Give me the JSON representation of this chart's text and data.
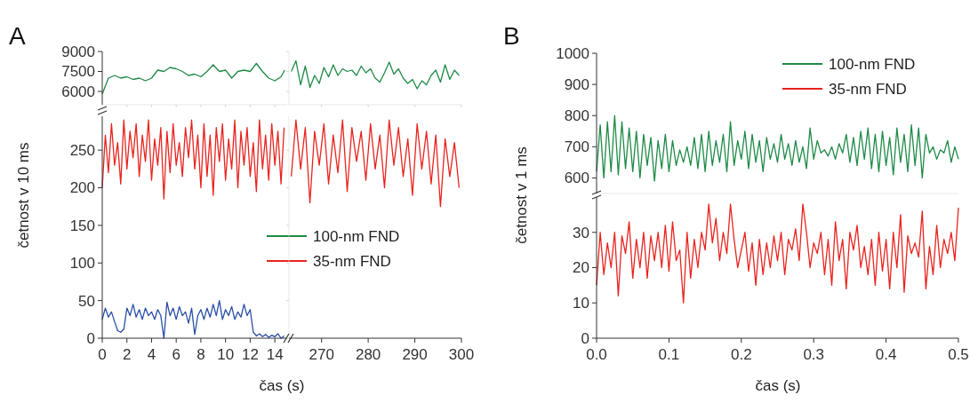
{
  "chart_data": [
    {
      "type": "line",
      "title": "A",
      "xlim": [
        0,
        15
      ],
      "xticks": [
        0,
        2,
        4,
        6,
        8,
        10,
        12,
        14
      ],
      "ylim": [
        5000,
        9000
      ],
      "yticks": [
        6000,
        7500,
        9000
      ],
      "tick_labels": "y",
      "x": [
        0,
        0.5,
        1,
        1.5,
        2,
        2.5,
        3,
        3.5,
        4,
        4.5,
        5,
        5.5,
        6,
        6.5,
        7,
        7.5,
        8,
        8.5,
        9,
        9.5,
        10,
        10.5,
        11,
        11.5,
        12,
        12.5,
        13,
        13.5,
        14,
        14.5,
        14.8
      ],
      "series": [
        {
          "name": "100-nm FND",
          "color": "#1e8a46",
          "values": [
            5800,
            7000,
            7200,
            7000,
            7100,
            6900,
            7000,
            6800,
            7000,
            7600,
            7500,
            7800,
            7700,
            7500,
            7200,
            7300,
            7100,
            7500,
            8000,
            7500,
            7600,
            7000,
            7500,
            7600,
            7500,
            8100,
            7500,
            7000,
            6800,
            7100,
            7600
          ]
        }
      ]
    },
    {
      "type": "line",
      "xlim": [
        263,
        300
      ],
      "xticks": [
        270,
        280,
        290,
        300
      ],
      "ylim": [
        5000,
        9000
      ],
      "yticks": [
        6000,
        7500,
        9000
      ],
      "tick_labels": false,
      "x": [
        263.5,
        264.5,
        265.5,
        266.5,
        267.5,
        268.5,
        269.5,
        270.5,
        271.5,
        272.5,
        273.5,
        274.5,
        275.5,
        276.5,
        277.5,
        278.5,
        279.5,
        280.5,
        281.5,
        282.5,
        283.5,
        284.5,
        285.5,
        286.5,
        287.5,
        288.5,
        289.5,
        290.5,
        291.5,
        292.5,
        293.5,
        294.5,
        295.5,
        296.5,
        297.5,
        298.5,
        299.5
      ],
      "series": [
        {
          "color": "#1e8a46",
          "values": [
            7500,
            8300,
            6500,
            7900,
            6300,
            7200,
            6600,
            7800,
            7100,
            8000,
            7200,
            7700,
            7500,
            7600,
            7200,
            7900,
            7400,
            7700,
            7000,
            6700,
            7400,
            8200,
            7300,
            7700,
            7000,
            6600,
            6900,
            6200,
            6800,
            6500,
            7200,
            7600,
            6700,
            8000,
            6900,
            7600,
            7200
          ]
        }
      ]
    },
    {
      "type": "line",
      "ylabel": "četnost v 10 ms",
      "xlabel": "čas (s)",
      "xlim": [
        0,
        15
      ],
      "xticks": [
        0,
        2,
        4,
        6,
        8,
        10,
        12,
        14
      ],
      "ylim": [
        0,
        295
      ],
      "yticks": [
        0,
        50,
        100,
        150,
        200,
        250
      ],
      "legend": "bottom right",
      "x": [
        0,
        0.25,
        0.5,
        0.75,
        1,
        1.25,
        1.5,
        1.75,
        2,
        2.25,
        2.5,
        2.75,
        3,
        3.25,
        3.5,
        3.75,
        4,
        4.25,
        4.5,
        4.75,
        5,
        5.25,
        5.5,
        5.75,
        6,
        6.25,
        6.5,
        6.75,
        7,
        7.25,
        7.5,
        7.75,
        8,
        8.25,
        8.5,
        8.75,
        9,
        9.25,
        9.5,
        9.75,
        10,
        10.25,
        10.5,
        10.75,
        11,
        11.25,
        11.5,
        11.75,
        12,
        12.25,
        12.5,
        12.75,
        13,
        13.25,
        13.5,
        13.75,
        14,
        14.25,
        14.5,
        14.75
      ],
      "series": [
        {
          "name": "35-nm FND",
          "color": "#e8231e",
          "values": [
            200,
            270,
            220,
            285,
            230,
            260,
            205,
            290,
            225,
            275,
            240,
            285,
            215,
            270,
            235,
            290,
            210,
            265,
            230,
            280,
            185,
            275,
            220,
            285,
            230,
            260,
            215,
            280,
            240,
            290,
            225,
            270,
            200,
            285,
            215,
            270,
            190,
            280,
            235,
            285,
            210,
            265,
            225,
            290,
            200,
            275,
            230,
            280,
            215,
            260,
            195,
            290,
            225,
            270,
            210,
            285,
            230,
            275,
            205,
            280
          ]
        },
        {
          "color": "#2a4fa8",
          "values": [
            25,
            40,
            28,
            35,
            22,
            10,
            8,
            12,
            40,
            30,
            45,
            28,
            38,
            25,
            40,
            30,
            35,
            25,
            38,
            30,
            0,
            48,
            30,
            40,
            25,
            42,
            30,
            35,
            20,
            40,
            5,
            30,
            38,
            25,
            40,
            28,
            45,
            30,
            50,
            25,
            38,
            30,
            42,
            25,
            35,
            28,
            45,
            30,
            38,
            8,
            3,
            6,
            2,
            5,
            1,
            4,
            2,
            6,
            0,
            3
          ]
        }
      ]
    },
    {
      "type": "line",
      "xlim": [
        263,
        300
      ],
      "xticks": [
        270,
        280,
        290,
        300
      ],
      "ylim": [
        0,
        295
      ],
      "yticks": [
        0,
        50,
        100,
        150,
        200,
        250
      ],
      "tick_labels": "x",
      "x": [
        263.5,
        264.5,
        265.5,
        266.5,
        267.5,
        268.5,
        269.5,
        270.5,
        271.5,
        272.5,
        273.5,
        274.5,
        275.5,
        276.5,
        277.5,
        278.5,
        279.5,
        280.5,
        281.5,
        282.5,
        283.5,
        284.5,
        285.5,
        286.5,
        287.5,
        288.5,
        289.5,
        290.5,
        291.5,
        292.5,
        293.5,
        294.5,
        295.5,
        296.5,
        297.5,
        298.5,
        299.5
      ],
      "series": [
        {
          "color": "#e8231e",
          "values": [
            215,
            290,
            225,
            280,
            180,
            275,
            230,
            285,
            205,
            270,
            220,
            290,
            195,
            280,
            235,
            275,
            210,
            285,
            225,
            270,
            200,
            290,
            230,
            280,
            215,
            265,
            190,
            285,
            225,
            275,
            205,
            270,
            175,
            265,
            215,
            260,
            200
          ]
        }
      ]
    },
    {
      "type": "line",
      "title": "B",
      "xlim": [
        0,
        0.5
      ],
      "ylim": [
        550,
        1000
      ],
      "yticks": [
        600,
        700,
        800,
        900,
        1000
      ],
      "tick_labels": "y",
      "legend": "top right",
      "x": [
        0,
        0.005,
        0.01,
        0.015,
        0.02,
        0.025,
        0.03,
        0.035,
        0.04,
        0.045,
        0.05,
        0.055,
        0.06,
        0.065,
        0.07,
        0.075,
        0.08,
        0.085,
        0.09,
        0.095,
        0.1,
        0.105,
        0.11,
        0.115,
        0.12,
        0.125,
        0.13,
        0.135,
        0.14,
        0.145,
        0.15,
        0.155,
        0.16,
        0.165,
        0.17,
        0.175,
        0.18,
        0.185,
        0.19,
        0.195,
        0.2,
        0.205,
        0.21,
        0.215,
        0.22,
        0.225,
        0.23,
        0.235,
        0.24,
        0.245,
        0.25,
        0.255,
        0.26,
        0.265,
        0.27,
        0.275,
        0.28,
        0.285,
        0.29,
        0.295,
        0.3,
        0.305,
        0.31,
        0.315,
        0.32,
        0.325,
        0.33,
        0.335,
        0.34,
        0.345,
        0.35,
        0.355,
        0.36,
        0.365,
        0.37,
        0.375,
        0.38,
        0.385,
        0.39,
        0.395,
        0.4,
        0.405,
        0.41,
        0.415,
        0.42,
        0.425,
        0.43,
        0.435,
        0.44,
        0.445,
        0.45,
        0.455,
        0.46,
        0.465,
        0.47,
        0.475,
        0.48,
        0.485,
        0.49,
        0.495,
        0.5
      ],
      "series": [
        {
          "name": "100-nm FND",
          "color": "#1e8a46",
          "values": [
            620,
            770,
            600,
            780,
            620,
            800,
            610,
            780,
            630,
            760,
            620,
            750,
            600,
            740,
            640,
            730,
            590,
            720,
            630,
            740,
            620,
            720,
            640,
            690,
            650,
            700,
            640,
            730,
            630,
            740,
            620,
            750,
            640,
            720,
            650,
            740,
            620,
            780,
            640,
            720,
            660,
            750,
            630,
            740,
            650,
            720,
            620,
            730,
            660,
            710,
            650,
            740,
            660,
            710,
            640,
            720,
            650,
            700,
            630,
            760,
            660,
            720,
            680,
            690,
            670,
            700,
            660,
            710,
            680,
            740,
            650,
            730,
            640,
            750,
            660,
            760,
            630,
            740,
            620,
            750,
            640,
            730,
            610,
            760,
            650,
            740,
            620,
            770,
            640,
            760,
            600,
            740,
            680,
            700,
            660,
            690,
            680,
            720,
            650,
            700,
            660
          ]
        }
      ]
    },
    {
      "type": "line",
      "ylabel": "četnost v 1 ms",
      "xlabel": "čas (s)",
      "xlim": [
        0,
        0.5
      ],
      "xticks": [
        {
          "value": 0,
          "label": "0.0"
        },
        0.1,
        0.2,
        0.3,
        0.4,
        0.5
      ],
      "ylim": [
        0,
        40
      ],
      "yticks": [
        0,
        10,
        20,
        30
      ],
      "x": [
        0,
        0.005,
        0.01,
        0.015,
        0.02,
        0.025,
        0.03,
        0.035,
        0.04,
        0.045,
        0.05,
        0.055,
        0.06,
        0.065,
        0.07,
        0.075,
        0.08,
        0.085,
        0.09,
        0.095,
        0.1,
        0.105,
        0.11,
        0.115,
        0.12,
        0.125,
        0.13,
        0.135,
        0.14,
        0.145,
        0.15,
        0.155,
        0.16,
        0.165,
        0.17,
        0.175,
        0.18,
        0.185,
        0.19,
        0.195,
        0.2,
        0.205,
        0.21,
        0.215,
        0.22,
        0.225,
        0.23,
        0.235,
        0.24,
        0.245,
        0.25,
        0.255,
        0.26,
        0.265,
        0.27,
        0.275,
        0.28,
        0.285,
        0.29,
        0.295,
        0.3,
        0.305,
        0.31,
        0.315,
        0.32,
        0.325,
        0.33,
        0.335,
        0.34,
        0.345,
        0.35,
        0.355,
        0.36,
        0.365,
        0.37,
        0.375,
        0.38,
        0.385,
        0.39,
        0.395,
        0.4,
        0.405,
        0.41,
        0.415,
        0.42,
        0.425,
        0.43,
        0.435,
        0.44,
        0.445,
        0.45,
        0.455,
        0.46,
        0.465,
        0.47,
        0.475,
        0.48,
        0.485,
        0.49,
        0.495,
        0.5
      ],
      "series": [
        {
          "name": "35-nm FND",
          "color": "#e8231e",
          "values": [
            15,
            30,
            18,
            27,
            20,
            30,
            12,
            29,
            24,
            33,
            17,
            28,
            20,
            30,
            17,
            29,
            22,
            30,
            20,
            32,
            19,
            33,
            22,
            25,
            10,
            30,
            17,
            28,
            20,
            30,
            25,
            38,
            27,
            34,
            22,
            30,
            24,
            38,
            28,
            20,
            25,
            30,
            19,
            27,
            15,
            28,
            18,
            27,
            20,
            29,
            22,
            30,
            18,
            28,
            25,
            31,
            22,
            38,
            30,
            20,
            27,
            24,
            30,
            18,
            28,
            15,
            33,
            22,
            28,
            14,
            30,
            25,
            32,
            20,
            26,
            18,
            28,
            15,
            30,
            19,
            28,
            14,
            30,
            20,
            35,
            13,
            29,
            24,
            27,
            23,
            36,
            14,
            26,
            18,
            32,
            20,
            28,
            24,
            30,
            22,
            37
          ]
        }
      ]
    }
  ]
}
